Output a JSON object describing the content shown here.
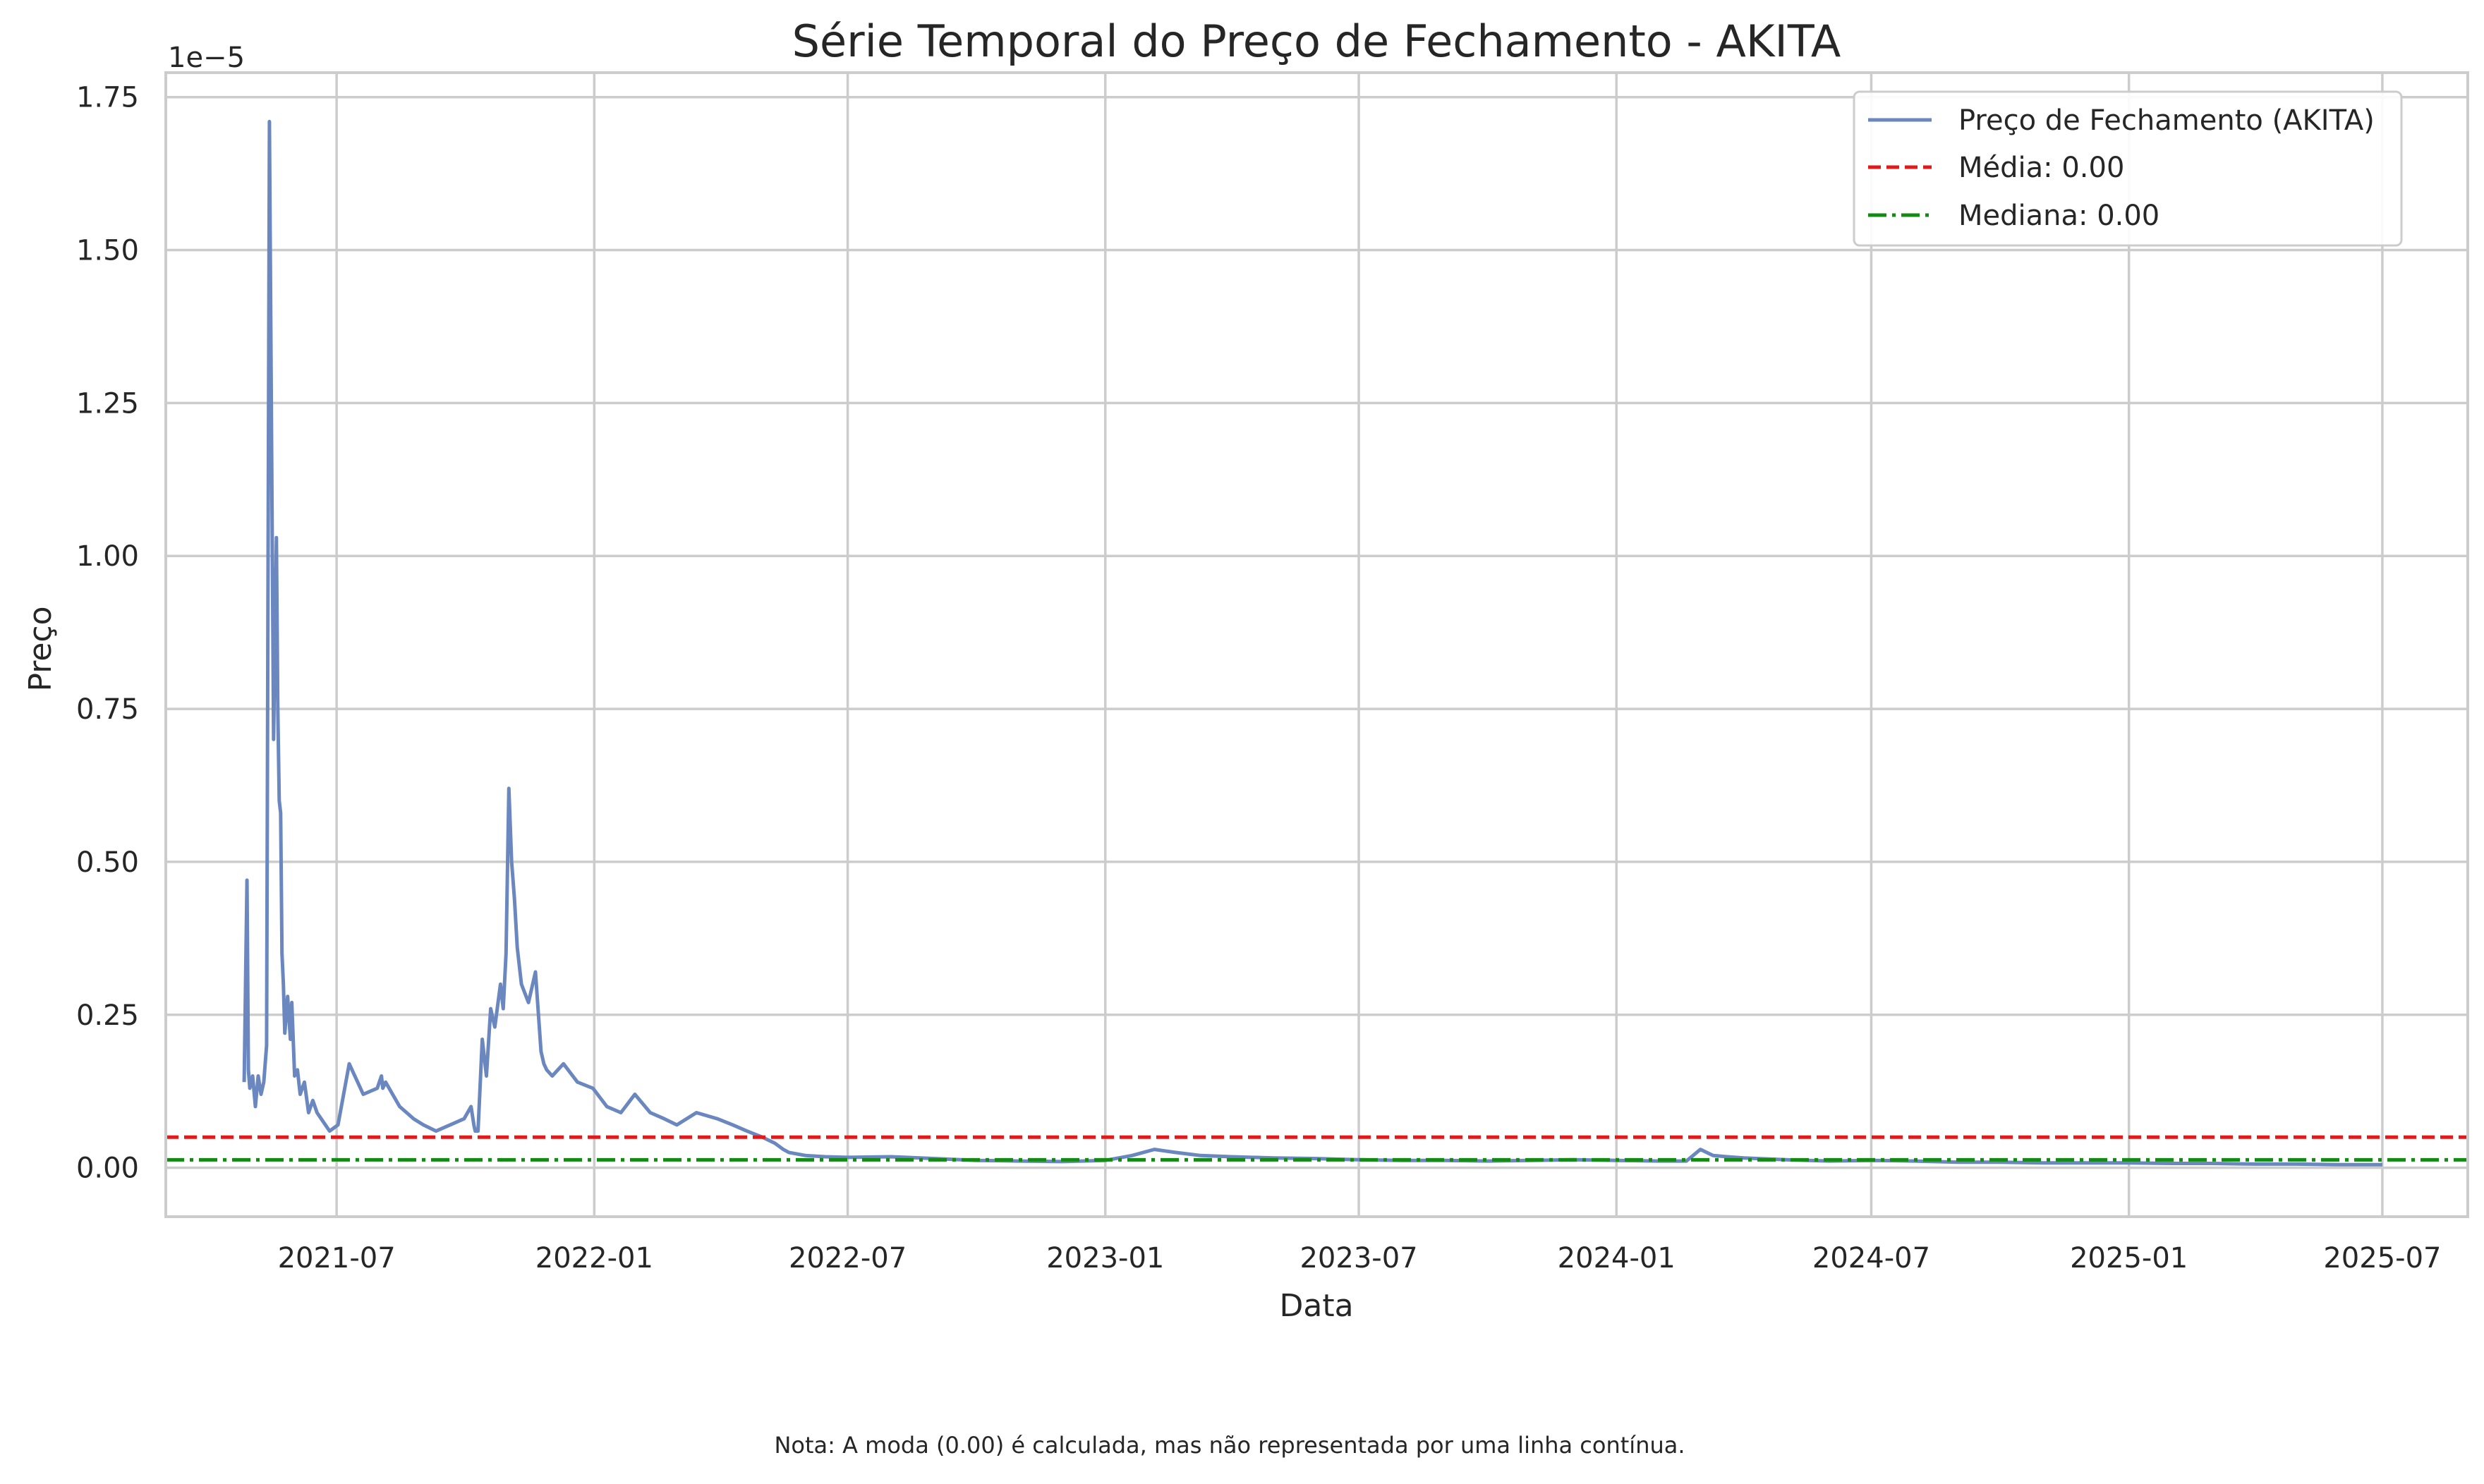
{
  "chart_data": {
    "type": "line",
    "title": "Série Temporal do Preço de Fechamento - AKITA",
    "xlabel": "Data",
    "ylabel": "Preço",
    "y_scale_label": "1e−5",
    "y_multiplier": 1e-05,
    "xlim": [
      "2021-03-01",
      "2025-08-31"
    ],
    "ylim": [
      -0.08,
      1.79
    ],
    "x_ticks": [
      "2021-07",
      "2022-01",
      "2022-07",
      "2023-01",
      "2023-07",
      "2024-01",
      "2024-07",
      "2025-01",
      "2025-07"
    ],
    "y_ticks": [
      "0.00",
      "0.25",
      "0.50",
      "0.75",
      "1.00",
      "1.25",
      "1.50",
      "1.75"
    ],
    "grid": true,
    "legend_position": "top-right",
    "colors": {
      "price": "#6b87c0",
      "mean": "#e01a1a",
      "median": "#138a13",
      "grid": "#cccccc",
      "spine": "#cccccc"
    },
    "series": [
      {
        "name": "Preço de Fechamento (AKITA)",
        "style": "solid",
        "x": [
          "2021-04-26",
          "2021-04-28",
          "2021-04-29",
          "2021-04-30",
          "2021-05-02",
          "2021-05-04",
          "2021-05-06",
          "2021-05-08",
          "2021-05-10",
          "2021-05-12",
          "2021-05-14",
          "2021-05-17",
          "2021-05-19",
          "2021-05-20",
          "2021-05-21",
          "2021-05-22",
          "2021-05-23",
          "2021-05-24",
          "2021-05-25",
          "2021-05-27",
          "2021-05-29",
          "2021-05-30",
          "2021-06-01",
          "2021-06-03",
          "2021-06-05",
          "2021-06-08",
          "2021-06-11",
          "2021-06-14",
          "2021-06-17",
          "2021-06-20",
          "2021-06-23",
          "2021-06-26",
          "2021-06-29",
          "2021-07-02",
          "2021-07-10",
          "2021-07-20",
          "2021-07-30",
          "2021-08-02",
          "2021-08-03",
          "2021-08-05",
          "2021-08-10",
          "2021-08-15",
          "2021-08-20",
          "2021-08-25",
          "2021-09-01",
          "2021-09-10",
          "2021-09-20",
          "2021-09-30",
          "2021-10-05",
          "2021-10-07",
          "2021-10-08",
          "2021-10-10",
          "2021-10-13",
          "2021-10-16",
          "2021-10-19",
          "2021-10-22",
          "2021-10-26",
          "2021-10-28",
          "2021-10-30",
          "2021-11-01",
          "2021-11-03",
          "2021-11-05",
          "2021-11-07",
          "2021-11-10",
          "2021-11-15",
          "2021-11-20",
          "2021-11-24",
          "2021-11-26",
          "2021-11-28",
          "2021-12-02",
          "2021-12-10",
          "2021-12-20",
          "2021-12-31",
          "2022-01-10",
          "2022-01-20",
          "2022-01-30",
          "2022-02-10",
          "2022-02-20",
          "2022-03-01",
          "2022-03-15",
          "2022-03-30",
          "2022-04-10",
          "2022-04-20",
          "2022-05-01",
          "2022-05-10",
          "2022-05-16",
          "2022-05-20",
          "2022-06-01",
          "2022-06-15",
          "2022-07-01",
          "2022-08-01",
          "2022-09-01",
          "2022-10-01",
          "2022-11-01",
          "2022-12-01",
          "2023-01-01",
          "2023-01-20",
          "2023-02-05",
          "2023-02-20",
          "2023-03-10",
          "2023-04-01",
          "2023-05-01",
          "2023-06-01",
          "2023-07-01",
          "2023-08-01",
          "2023-09-01",
          "2023-10-01",
          "2023-11-01",
          "2023-12-01",
          "2024-01-01",
          "2024-02-01",
          "2024-02-20",
          "2024-03-01",
          "2024-03-10",
          "2024-03-20",
          "2024-04-01",
          "2024-05-01",
          "2024-06-01",
          "2024-07-01",
          "2024-08-01",
          "2024-09-01",
          "2024-10-01",
          "2024-11-01",
          "2024-12-01",
          "2025-01-01",
          "2025-02-01",
          "2025-03-01",
          "2025-04-01",
          "2025-05-01",
          "2025-06-01",
          "2025-07-01"
        ],
        "values": [
          0.14,
          0.47,
          0.16,
          0.13,
          0.15,
          0.1,
          0.15,
          0.12,
          0.14,
          0.2,
          1.71,
          0.7,
          1.03,
          0.75,
          0.6,
          0.58,
          0.35,
          0.3,
          0.22,
          0.28,
          0.21,
          0.27,
          0.15,
          0.16,
          0.12,
          0.14,
          0.09,
          0.11,
          0.09,
          0.08,
          0.07,
          0.06,
          0.065,
          0.07,
          0.17,
          0.12,
          0.13,
          0.15,
          0.13,
          0.14,
          0.12,
          0.1,
          0.09,
          0.08,
          0.07,
          0.06,
          0.07,
          0.08,
          0.1,
          0.07,
          0.06,
          0.06,
          0.21,
          0.15,
          0.26,
          0.23,
          0.3,
          0.26,
          0.35,
          0.62,
          0.5,
          0.44,
          0.36,
          0.3,
          0.27,
          0.32,
          0.19,
          0.17,
          0.16,
          0.15,
          0.17,
          0.14,
          0.13,
          0.1,
          0.09,
          0.12,
          0.09,
          0.08,
          0.07,
          0.09,
          0.08,
          0.07,
          0.06,
          0.05,
          0.04,
          0.03,
          0.025,
          0.02,
          0.018,
          0.017,
          0.018,
          0.015,
          0.012,
          0.011,
          0.01,
          0.012,
          0.02,
          0.03,
          0.025,
          0.02,
          0.018,
          0.016,
          0.015,
          0.013,
          0.012,
          0.012,
          0.011,
          0.012,
          0.013,
          0.012,
          0.011,
          0.011,
          0.03,
          0.02,
          0.018,
          0.016,
          0.013,
          0.011,
          0.012,
          0.011,
          0.009,
          0.009,
          0.008,
          0.008,
          0.008,
          0.007,
          0.007,
          0.006,
          0.006,
          0.005,
          0.005
        ]
      },
      {
        "name": "Média: 0.00",
        "style": "dashed",
        "constant": 0.05
      },
      {
        "name": "Mediana: 0.00",
        "style": "dashdot",
        "constant": 0.013
      }
    ],
    "note": "Nota: A moda (0.00) é calculada, mas não representada por uma linha contínua."
  }
}
